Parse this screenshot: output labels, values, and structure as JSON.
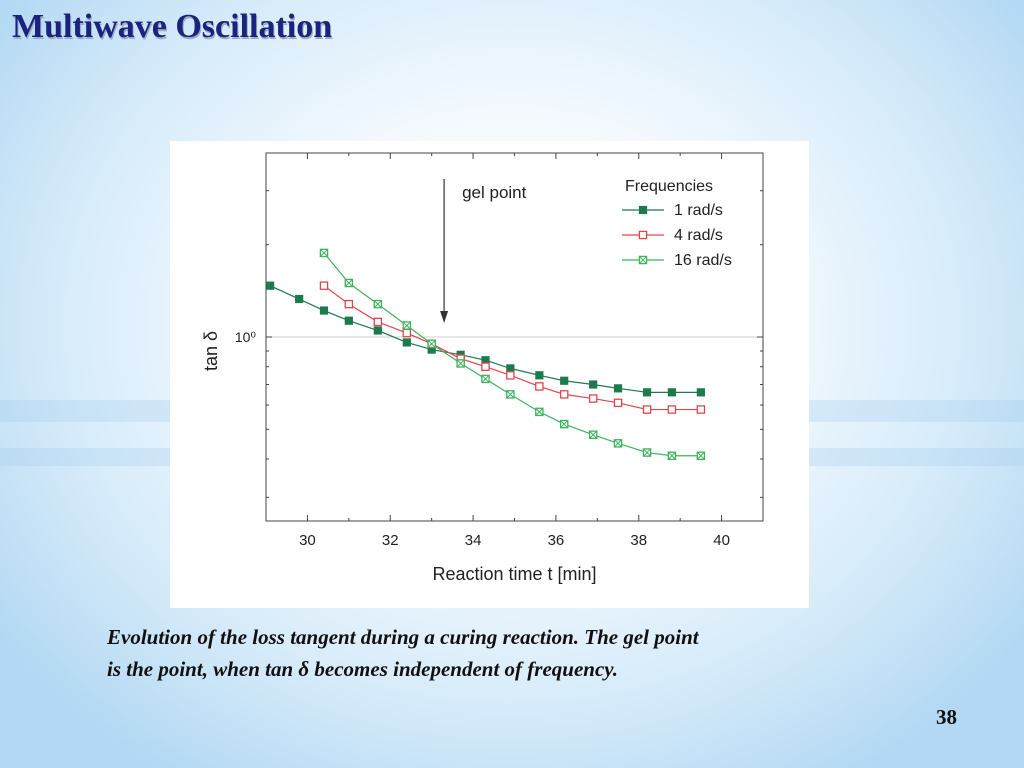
{
  "slide": {
    "title": "Multiwave Oscillation",
    "caption_line1": "Evolution of the loss tangent during a curing reaction. The gel point",
    "caption_line2": "is the point, when tan δ becomes independent of frequency.",
    "page_number": "38"
  },
  "chart_data": {
    "type": "line",
    "title": "",
    "xlabel": "Reaction time t [min]",
    "ylabel": "tan δ",
    "xlim": [
      29,
      41
    ],
    "ylim_log10": [
      -0.6,
      0.6
    ],
    "y_scale": "log",
    "x_ticks": [
      "30",
      "32",
      "34",
      "36",
      "38",
      "40"
    ],
    "y_tick_label": "10⁰",
    "gridlines": "horizontal at 10⁰",
    "annotation": {
      "text": "gel point",
      "x": 33.3,
      "arrow": "down"
    },
    "legend": {
      "title": "Frequencies",
      "position": "top-right"
    },
    "series": [
      {
        "name": "1 rad/s",
        "marker": "filled-square",
        "color": "#1e7a4e",
        "x": [
          29.1,
          29.8,
          30.4,
          31.0,
          31.7,
          32.4,
          33.0,
          33.7,
          34.3,
          34.9,
          35.6,
          36.2,
          36.9,
          37.5,
          38.2,
          38.8,
          39.5
        ],
        "y": [
          1.47,
          1.33,
          1.22,
          1.13,
          1.05,
          0.96,
          0.91,
          0.875,
          0.84,
          0.79,
          0.75,
          0.72,
          0.7,
          0.68,
          0.66,
          0.66,
          0.66
        ]
      },
      {
        "name": "4 rad/s",
        "marker": "open-square",
        "color": "#e0474c",
        "x": [
          30.4,
          31.0,
          31.7,
          32.4,
          33.0,
          33.7,
          34.3,
          34.9,
          35.6,
          36.2,
          36.9,
          37.5,
          38.2,
          38.8,
          39.5
        ],
        "y": [
          1.47,
          1.28,
          1.12,
          1.03,
          0.95,
          0.85,
          0.8,
          0.75,
          0.69,
          0.65,
          0.63,
          0.61,
          0.58,
          0.58,
          0.58
        ]
      },
      {
        "name": "16 rad/s",
        "marker": "crossed-square",
        "color": "#3fb35e",
        "x": [
          30.4,
          31.0,
          31.7,
          32.4,
          33.0,
          33.7,
          34.3,
          34.9,
          35.6,
          36.2,
          36.9,
          37.5,
          38.2,
          38.8,
          39.5
        ],
        "y": [
          1.88,
          1.5,
          1.28,
          1.09,
          0.95,
          0.82,
          0.73,
          0.65,
          0.57,
          0.52,
          0.48,
          0.45,
          0.42,
          0.41,
          0.41
        ]
      }
    ]
  }
}
